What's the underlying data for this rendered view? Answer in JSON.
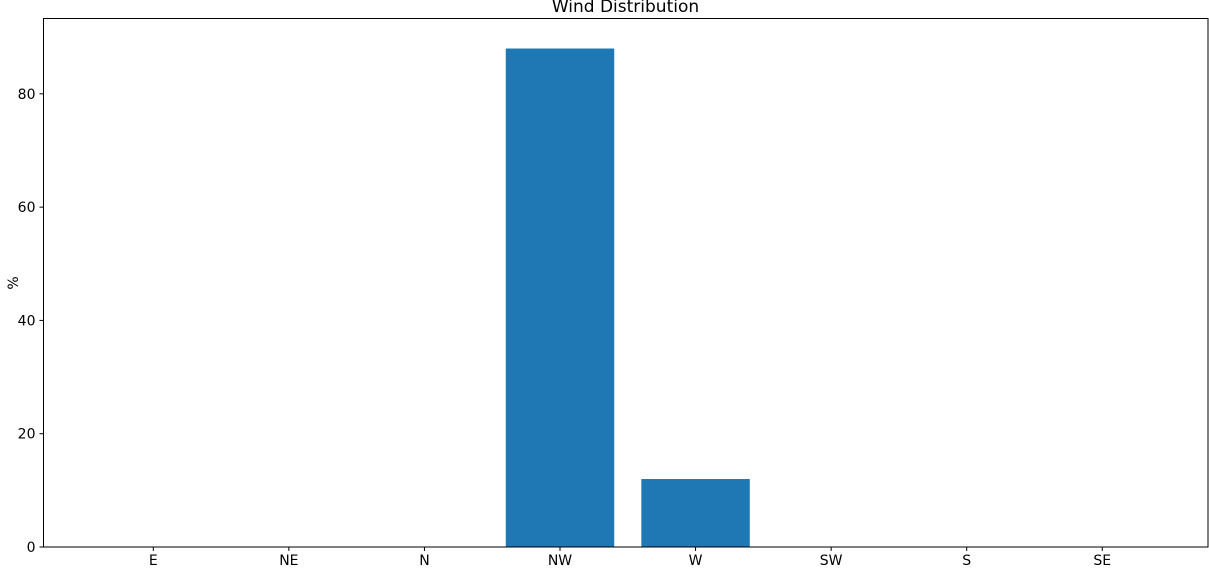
{
  "chart_data": {
    "type": "bar",
    "title": "Wind Distribution",
    "xlabel": "",
    "ylabel": "%",
    "categories": [
      "E",
      "NE",
      "N",
      "NW",
      "W",
      "SW",
      "S",
      "SE"
    ],
    "values": [
      0,
      0,
      0,
      88,
      12,
      0,
      0,
      0
    ],
    "yticks": [
      0,
      20,
      40,
      60,
      80
    ],
    "ylim": [
      0,
      93.3
    ],
    "xlim": [
      -0.81,
      7.78
    ],
    "bar_width": 0.8,
    "bar_color": "#1f77b4",
    "axis_color": "#000000",
    "background_color": "#ffffff",
    "grid": false,
    "legend": null
  }
}
